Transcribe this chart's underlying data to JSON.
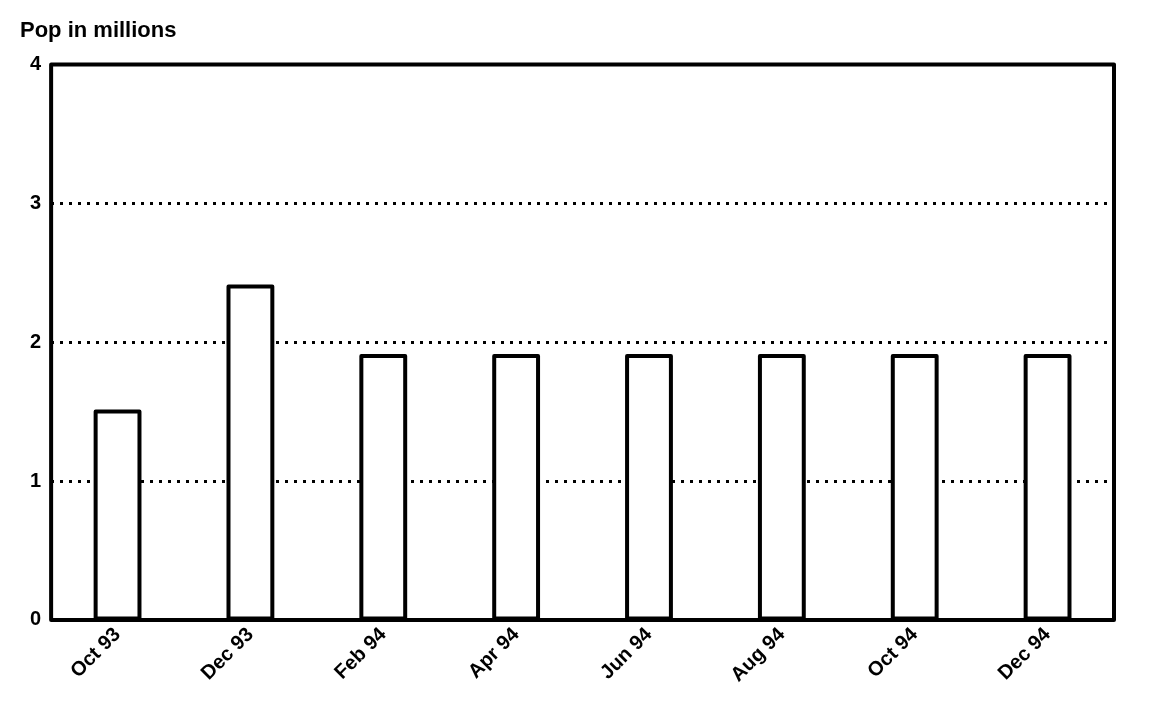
{
  "chart_data": {
    "type": "bar",
    "title": "Pop in millions",
    "categories": [
      "Oct 93",
      "Dec 93",
      "Feb 94",
      "Apr 94",
      "Jun 94",
      "Aug 94",
      "Oct 94",
      "Dec 94"
    ],
    "values": [
      1.5,
      2.4,
      1.9,
      1.9,
      1.9,
      1.9,
      1.9,
      1.9
    ],
    "color": "#000000",
    "ylim": [
      0,
      4
    ],
    "yticks": [
      0,
      1,
      2,
      3,
      4
    ],
    "grid": "y",
    "legend": false
  }
}
